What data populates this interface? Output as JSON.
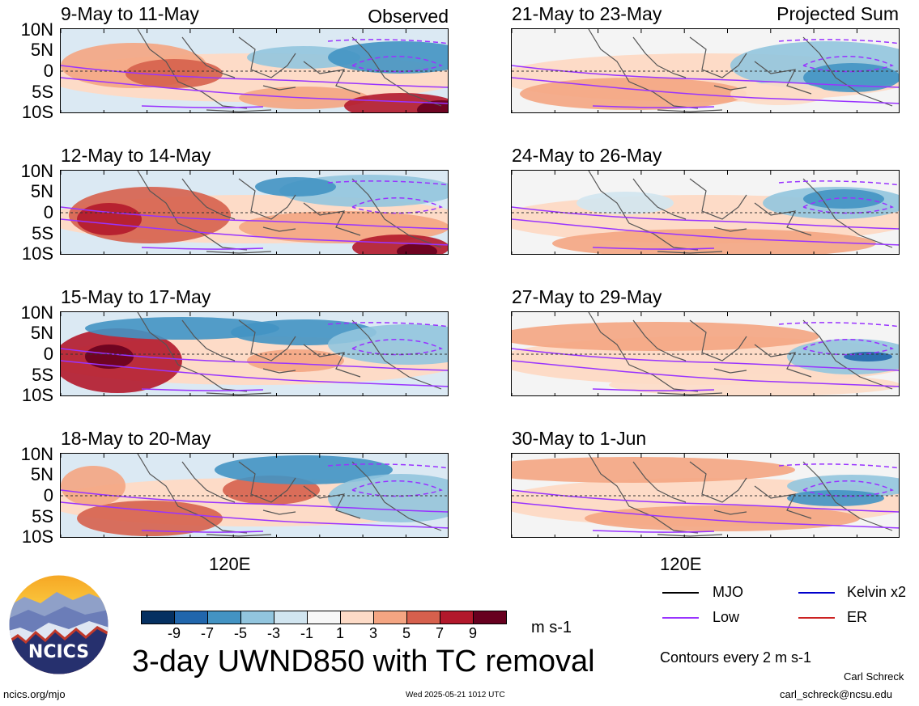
{
  "panels_left": [
    {
      "period": "9-May to 11-May",
      "label": "Observed"
    },
    {
      "period": "12-May to 14-May",
      "label": ""
    },
    {
      "period": "15-May to 17-May",
      "label": ""
    },
    {
      "period": "18-May to 20-May",
      "label": ""
    }
  ],
  "panels_right": [
    {
      "period": "21-May to 23-May",
      "label": "Projected Sum"
    },
    {
      "period": "24-May to 26-May",
      "label": ""
    },
    {
      "period": "27-May to 29-May",
      "label": ""
    },
    {
      "period": "30-May to 1-Jun",
      "label": ""
    }
  ],
  "y_ticks": [
    "10N",
    "5N",
    "0",
    "5S",
    "10S"
  ],
  "x_tick": "120E",
  "colorbar": {
    "labels": [
      "-9",
      "-7",
      "-5",
      "-3",
      "-1",
      "1",
      "3",
      "5",
      "7",
      "9"
    ],
    "colors": [
      "#053061",
      "#2166ac",
      "#4393c3",
      "#92c5de",
      "#d1e5f0",
      "#f7f7f7",
      "#fddbc7",
      "#f4a582",
      "#d6604d",
      "#b2182b",
      "#67001f"
    ],
    "unit": "m s-1"
  },
  "title": "3-day UWND850 with TC removal",
  "legend": {
    "items": [
      {
        "label": "MJO",
        "color": "#000000"
      },
      {
        "label": "Kelvin x2",
        "color": "#0000cc"
      },
      {
        "label": "Low",
        "color": "#9933ff"
      },
      {
        "label": "ER",
        "color": "#cc2222"
      }
    ],
    "contour_note": "Contours every 2 m s-1"
  },
  "logo": {
    "text": "NCICS"
  },
  "footer": {
    "url": "ncics.org/mjo",
    "timestamp": "Wed 2025-05-21 1012 UTC",
    "author": "Carl Schreck",
    "email": "carl_schreck@ncsu.edu"
  }
}
